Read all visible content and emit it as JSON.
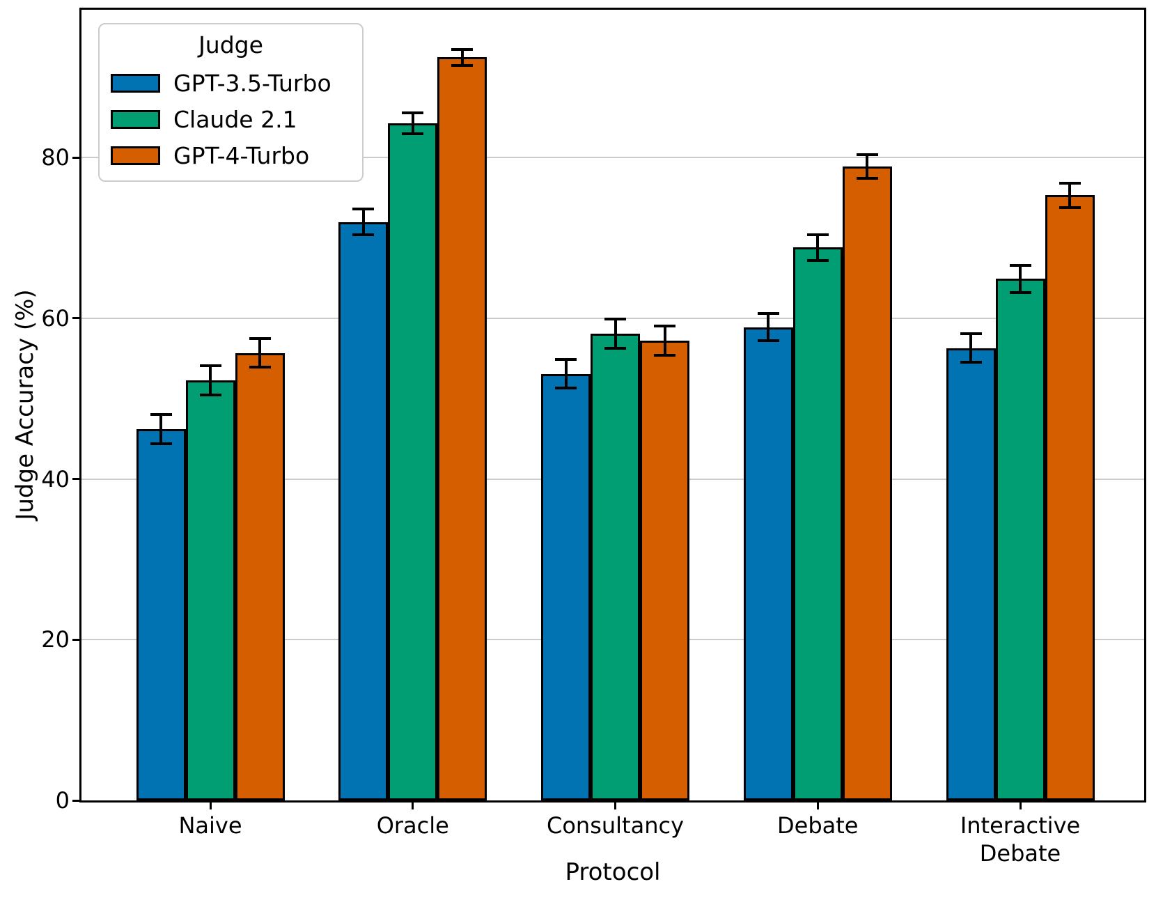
{
  "chart_data": {
    "type": "bar",
    "title": "",
    "xlabel": "Protocol",
    "ylabel": "Judge Accuracy (%)",
    "categories": [
      "Naive",
      "Oracle",
      "Consultancy",
      "Debate",
      "Interactive\nDebate"
    ],
    "series": [
      {
        "name": "GPT-3.5-Turbo",
        "color": "#0173B2",
        "values": [
          46.2,
          72.0,
          53.1,
          58.9,
          56.3
        ],
        "errors": [
          1.8,
          1.6,
          1.8,
          1.7,
          1.8
        ]
      },
      {
        "name": "Claude 2.1",
        "color": "#029E73",
        "values": [
          52.3,
          84.3,
          58.1,
          68.8,
          64.9
        ],
        "errors": [
          1.8,
          1.3,
          1.8,
          1.6,
          1.7
        ]
      },
      {
        "name": "GPT-4-Turbo",
        "color": "#D55E00",
        "values": [
          55.7,
          92.5,
          57.2,
          78.9,
          75.3
        ],
        "errors": [
          1.8,
          1.0,
          1.8,
          1.5,
          1.5
        ]
      }
    ],
    "yticks": [
      0,
      20,
      40,
      60,
      80
    ],
    "ylim": [
      0,
      98.4
    ],
    "grid": true,
    "grid_axis": "y",
    "error_bars": true,
    "legend": {
      "title": "Judge",
      "position": "upper-left"
    },
    "colors": {
      "bar_edge": "#000000",
      "error_bar": "#000000",
      "gridline": "#CBCBCB",
      "spine": "#000000",
      "background": "#FFFFFF",
      "text": "#000000",
      "legend_border": "#CCCCCC"
    }
  }
}
